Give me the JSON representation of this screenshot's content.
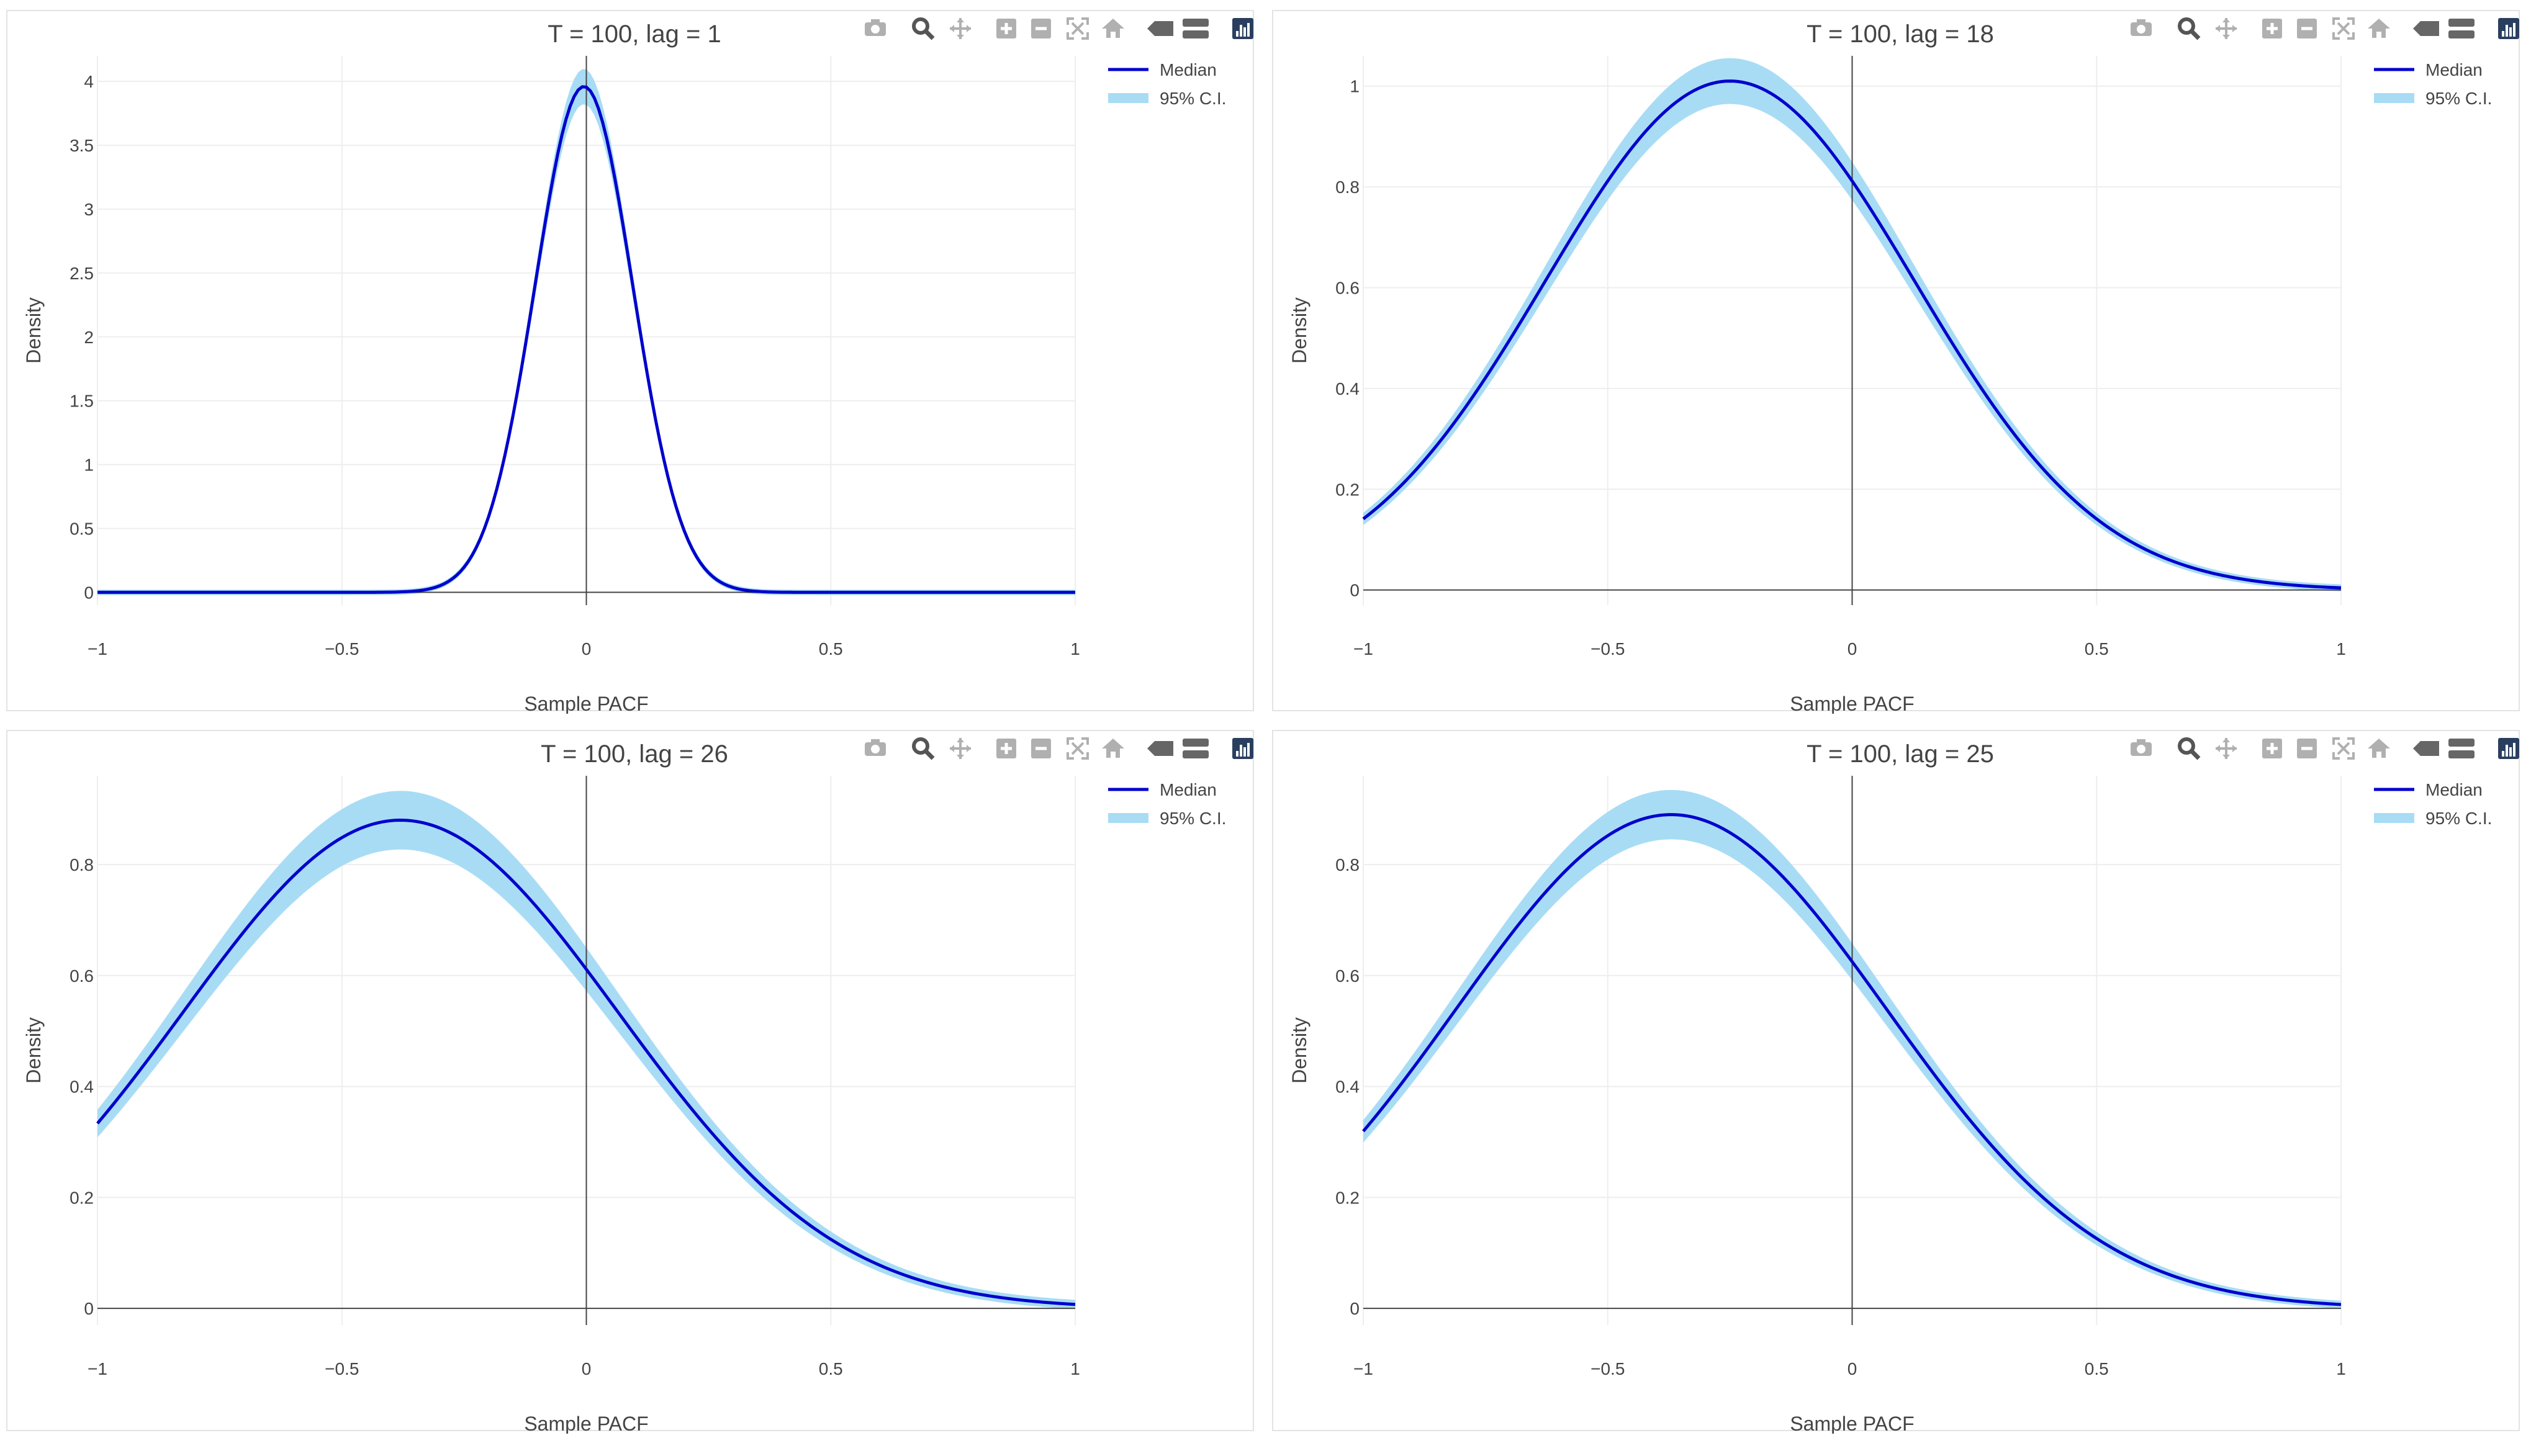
{
  "colors": {
    "median": "#0000cc",
    "ci_fill": "#a8dcf5",
    "grid": "#eeeeee",
    "zeroline": "#444444",
    "text": "#444444"
  },
  "modebar": {
    "icons": [
      "camera-icon",
      "zoom-icon",
      "pan-icon",
      "zoom-in-icon",
      "zoom-out-icon",
      "autoscale-icon",
      "home-icon",
      "hover-closest-icon",
      "hover-compare-icon",
      "plotly-logo-icon"
    ]
  },
  "chart_data": [
    {
      "type": "line",
      "title": "T = 100, lag = 1",
      "xlabel": "Sample PACF",
      "ylabel": "Density",
      "xlim": [
        -1,
        1
      ],
      "ylim": [
        -0.1,
        4.2
      ],
      "x_ticks": [
        -1,
        -0.5,
        0,
        0.5,
        1
      ],
      "x_tick_labels": [
        "−1",
        "−0.5",
        "0",
        "0.5",
        "1"
      ],
      "y_ticks": [
        0,
        0.5,
        1,
        1.5,
        2,
        2.5,
        3,
        3.5,
        4
      ],
      "y_tick_labels": [
        "0",
        "0.5",
        "1",
        "1.5",
        "2",
        "2.5",
        "3",
        "3.5",
        "4"
      ],
      "legend": [
        "Median",
        "95% C.I."
      ],
      "legend_position": "top-right",
      "grid": true,
      "series": [
        {
          "name": "Median",
          "kind": "normal-curve",
          "mu": -0.005,
          "sigma": 0.1,
          "peak": 3.96,
          "ci_width_frac": 0.035
        }
      ]
    },
    {
      "type": "line",
      "title": "T = 100, lag = 18",
      "xlabel": "Sample PACF",
      "ylabel": "Density",
      "xlim": [
        -1,
        1
      ],
      "ylim": [
        -0.03,
        1.06
      ],
      "x_ticks": [
        -1,
        -0.5,
        0,
        0.5,
        1
      ],
      "x_tick_labels": [
        "−1",
        "−0.5",
        "0",
        "0.5",
        "1"
      ],
      "y_ticks": [
        0,
        0.2,
        0.4,
        0.6,
        0.8,
        1
      ],
      "y_tick_labels": [
        "0",
        "0.2",
        "0.4",
        "0.6",
        "0.8",
        "1"
      ],
      "legend": [
        "Median",
        "95% C.I."
      ],
      "legend_position": "top-right",
      "grid": true,
      "series": [
        {
          "name": "Median",
          "kind": "normal-curve",
          "mu": -0.25,
          "sigma": 0.378,
          "peak": 1.01,
          "ci_width_frac": 0.045
        }
      ]
    },
    {
      "type": "line",
      "title": "T = 100, lag = 26",
      "xlabel": "Sample PACF",
      "ylabel": "Density",
      "xlim": [
        -1,
        1
      ],
      "ylim": [
        -0.03,
        0.96
      ],
      "x_ticks": [
        -1,
        -0.5,
        0,
        0.5,
        1
      ],
      "x_tick_labels": [
        "−1",
        "−0.5",
        "0",
        "0.5",
        "1"
      ],
      "y_ticks": [
        0,
        0.2,
        0.4,
        0.6,
        0.8
      ],
      "y_tick_labels": [
        "0",
        "0.2",
        "0.4",
        "0.6",
        "0.8"
      ],
      "legend": [
        "Median",
        "95% C.I."
      ],
      "legend_position": "top-right",
      "grid": true,
      "series": [
        {
          "name": "Median",
          "kind": "normal-curve",
          "mu": -0.38,
          "sigma": 0.445,
          "peak": 0.88,
          "ci_width_frac": 0.06
        }
      ]
    },
    {
      "type": "line",
      "title": "T = 100, lag = 25",
      "xlabel": "Sample PACF",
      "ylabel": "Density",
      "xlim": [
        -1,
        1
      ],
      "ylim": [
        -0.03,
        0.96
      ],
      "x_ticks": [
        -1,
        -0.5,
        0,
        0.5,
        1
      ],
      "x_tick_labels": [
        "−1",
        "−0.5",
        "0",
        "0.5",
        "1"
      ],
      "y_ticks": [
        0,
        0.2,
        0.4,
        0.6,
        0.8
      ],
      "y_tick_labels": [
        "0",
        "0.2",
        "0.4",
        "0.6",
        "0.8"
      ],
      "legend": [
        "Median",
        "95% C.I."
      ],
      "legend_position": "top-right",
      "grid": true,
      "series": [
        {
          "name": "Median",
          "kind": "normal-curve",
          "mu": -0.37,
          "sigma": 0.44,
          "peak": 0.89,
          "ci_width_frac": 0.05
        }
      ]
    }
  ]
}
